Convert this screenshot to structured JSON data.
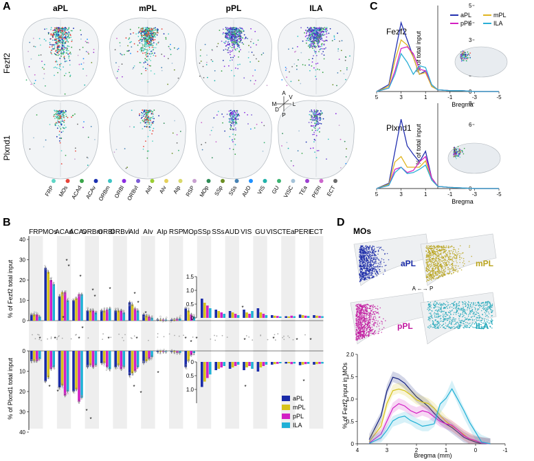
{
  "panels": {
    "a": "A",
    "b": "B",
    "c": "C",
    "d": "D"
  },
  "panelA": {
    "columns": [
      "aPL",
      "mPL",
      "pPL",
      "ILA"
    ],
    "rows": [
      "Fezf2",
      "Plxnd1"
    ],
    "compass": {
      "a": "A",
      "p": "P",
      "m": "M",
      "l": "L",
      "d": "D",
      "v": "V"
    },
    "regions": [
      "FRP",
      "MOs",
      "ACAd",
      "ACAv",
      "ORBm",
      "ORBl",
      "ORBvl",
      "AId",
      "AIv",
      "AIp",
      "RSP",
      "MOp",
      "SSp",
      "SSs",
      "AUD",
      "VIS",
      "GU",
      "VISC",
      "TEa",
      "PERI",
      "ECT"
    ],
    "colors": [
      "#5fd6c6",
      "#e8443a",
      "#3aa54a",
      "#1a2fb0",
      "#3cc4c4",
      "#8a2be2",
      "#7b5cd6",
      "#9acd32",
      "#e6d05a",
      "#d9d96b",
      "#c8a0d0",
      "#2e8b57",
      "#6b8e23",
      "#4682b4",
      "#1e90ff",
      "#20b2aa",
      "#3cb371",
      "#a4c2d8",
      "#9d3fd1",
      "#cc66cc",
      "#6a6a6a"
    ]
  },
  "panelB": {
    "ylabel_top": "% of Fezf2 total input",
    "ylabel_bottom": "% of Plxnd1 total input",
    "yticks": [
      "40",
      "30",
      "20",
      "10",
      "0",
      "10",
      "20",
      "30",
      "40"
    ],
    "inset_yticks_top": [
      "1.5",
      "1.0",
      "0.5",
      "0"
    ],
    "inset_yticks_bottom": [
      "0",
      "0.5",
      "1.0"
    ],
    "legend": [
      {
        "name": "aPL",
        "color": "#1a2ba8"
      },
      {
        "name": "mPL",
        "color": "#d6c21a"
      },
      {
        "name": "pPL",
        "color": "#d21fc4"
      },
      {
        "name": "ILA",
        "color": "#1fb0d6"
      }
    ]
  },
  "chart_data": [
    {
      "type": "bar",
      "title": "% of Fezf2 total input",
      "categories": [
        "FRP",
        "MOs",
        "ACAd",
        "ACAv",
        "ORBm",
        "ORBl",
        "ORBvl",
        "AId",
        "AIv",
        "AIp",
        "RSP",
        "MOp"
      ],
      "series": [
        {
          "name": "aPL",
          "values": [
            3,
            26,
            12,
            10,
            5,
            5,
            5,
            9,
            3,
            0.5,
            0.5,
            6
          ]
        },
        {
          "name": "mPL",
          "values": [
            3,
            24,
            14,
            11,
            5,
            5,
            5,
            8,
            2.5,
            0.5,
            0.5,
            5
          ]
        },
        {
          "name": "pPL",
          "values": [
            3,
            20,
            14,
            13,
            5,
            5.5,
            5,
            6,
            2,
            0.5,
            1,
            3
          ]
        },
        {
          "name": "ILA",
          "values": [
            2,
            18,
            10,
            13,
            4,
            6,
            4,
            5,
            1.5,
            0.5,
            1,
            2
          ]
        }
      ],
      "ylim": [
        0,
        40
      ]
    },
    {
      "type": "bar",
      "title": "% of Plxnd1 total input",
      "categories": [
        "FRP",
        "MOs",
        "ACAd",
        "ACAv",
        "ORBm",
        "ORBl",
        "ORBvl",
        "AId",
        "AIv",
        "AIp",
        "RSP",
        "MOp"
      ],
      "series": [
        {
          "name": "aPL",
          "values": [
            5,
            15,
            18,
            20,
            8,
            6,
            8,
            12,
            6,
            0.5,
            0.5,
            8
          ]
        },
        {
          "name": "mPL",
          "values": [
            5,
            13,
            17,
            19,
            7,
            6,
            7,
            11,
            5,
            0.5,
            0.5,
            5
          ]
        },
        {
          "name": "pPL",
          "values": [
            5,
            9,
            22,
            25,
            8,
            8,
            9,
            10,
            4,
            0.5,
            1,
            2
          ]
        },
        {
          "name": "ILA",
          "values": [
            4,
            8,
            20,
            23,
            7,
            9,
            8,
            8,
            3,
            0.5,
            1,
            1
          ]
        }
      ],
      "ylim": [
        0,
        40
      ]
    },
    {
      "type": "line",
      "title": "Fezf2",
      "xlabel": "Bregma",
      "ylabel": "% of total input",
      "x": [
        5,
        4,
        3.5,
        3,
        2.5,
        2,
        1.5,
        1,
        0.5,
        0,
        -1,
        -2,
        -3,
        -5
      ],
      "series": [
        {
          "name": "aPL",
          "values": [
            0,
            0.4,
            2.2,
            4.0,
            3.0,
            2.0,
            1.0,
            1.2,
            0.3,
            0.1,
            0.05,
            0.05,
            0,
            0
          ]
        },
        {
          "name": "mPL",
          "values": [
            0,
            0.3,
            1.8,
            3.0,
            2.7,
            2.0,
            1.0,
            1.1,
            0.3,
            0.1,
            0.05,
            0.05,
            0,
            0
          ]
        },
        {
          "name": "pPL",
          "values": [
            0,
            0.2,
            1.2,
            2.5,
            2.6,
            2.2,
            1.3,
            1.2,
            0.4,
            0.1,
            0.05,
            0.05,
            0,
            0
          ]
        },
        {
          "name": "ILA",
          "values": [
            0,
            0.2,
            1.0,
            2.2,
            1.7,
            1.0,
            1.5,
            1.4,
            0.4,
            0.1,
            0.05,
            0.05,
            0,
            0
          ]
        }
      ],
      "ylim": [
        0,
        5
      ],
      "xlim": [
        5,
        -5
      ]
    },
    {
      "type": "line",
      "title": "Plxnd1",
      "xlabel": "Bregma",
      "ylabel": "% of total input",
      "x": [
        5,
        4,
        3.5,
        3,
        2.5,
        2,
        1.5,
        1,
        0.5,
        0,
        -1,
        -2,
        -3,
        -5
      ],
      "series": [
        {
          "name": "aPL",
          "values": [
            0,
            0.5,
            3.5,
            6.5,
            4.0,
            3.2,
            2.5,
            3.5,
            1.0,
            0.2,
            0.1,
            0.05,
            0,
            0
          ]
        },
        {
          "name": "mPL",
          "values": [
            0,
            0.4,
            2.5,
            3.0,
            2.0,
            2.0,
            2.0,
            2.6,
            0.8,
            0.2,
            0.1,
            0.05,
            0,
            0
          ]
        },
        {
          "name": "pPL",
          "values": [
            0,
            0.3,
            1.8,
            2.0,
            1.5,
            1.7,
            2.5,
            3.0,
            1.0,
            0.2,
            0.1,
            0.05,
            0,
            0
          ]
        },
        {
          "name": "ILA",
          "values": [
            0,
            0.3,
            1.5,
            2.0,
            1.4,
            1.5,
            1.8,
            2.2,
            0.8,
            0.2,
            0.1,
            0.05,
            0,
            0
          ]
        }
      ],
      "ylim": [
        0,
        8
      ],
      "xlim": [
        5,
        -5
      ]
    },
    {
      "type": "line",
      "title": "% of Fezf2 input in MOs",
      "xlabel": "Bregma (mm)",
      "ylabel": "% of Fezf2 input in MOs",
      "x": [
        3.6,
        3.2,
        3.0,
        2.8,
        2.6,
        2.4,
        2.2,
        2.0,
        1.8,
        1.6,
        1.4,
        1.2,
        1.0,
        0.8,
        0.6,
        0.4,
        0.2,
        0.0,
        -0.2,
        -0.5
      ],
      "series": [
        {
          "name": "aPL",
          "values": [
            0.1,
            0.6,
            1.2,
            1.5,
            1.45,
            1.35,
            1.2,
            1.05,
            0.95,
            0.85,
            0.7,
            0.55,
            0.45,
            0.35,
            0.25,
            0.15,
            0.08,
            0.04,
            0.02,
            0
          ]
        },
        {
          "name": "mPL",
          "values": [
            0.05,
            0.4,
            0.9,
            1.2,
            1.25,
            1.2,
            1.1,
            1.0,
            0.95,
            0.9,
            0.8,
            0.65,
            0.5,
            0.4,
            0.3,
            0.2,
            0.12,
            0.06,
            0.03,
            0
          ]
        },
        {
          "name": "pPL",
          "values": [
            0.02,
            0.2,
            0.5,
            0.8,
            0.9,
            0.85,
            0.75,
            0.7,
            0.75,
            0.7,
            0.6,
            0.5,
            0.45,
            0.4,
            0.3,
            0.2,
            0.12,
            0.06,
            0.03,
            0
          ]
        },
        {
          "name": "ILA",
          "values": [
            0.02,
            0.15,
            0.3,
            0.5,
            0.55,
            0.6,
            0.55,
            0.45,
            0.4,
            0.4,
            0.5,
            0.8,
            1.0,
            1.3,
            1.0,
            0.7,
            0.45,
            0.2,
            0.08,
            0
          ]
        }
      ],
      "ylim": [
        0,
        2.0
      ],
      "xlim": [
        4,
        -1
      ],
      "xticks": [
        "4",
        "3",
        "2",
        "1",
        "0",
        "-1"
      ],
      "yticks": [
        "0",
        "0.5",
        "1.0",
        "1.5",
        "2.0"
      ]
    }
  ],
  "panelC": {
    "row1": "Fezf2",
    "row2": "Plxnd1",
    "ylabel": "% of total input",
    "xlabel": "Bregma",
    "xticks": [
      "5",
      "3",
      "1",
      "-1",
      "-3",
      "-5"
    ],
    "yticks1": [
      "0",
      "1",
      "2",
      "3",
      "4",
      "5"
    ],
    "yticks2": [
      "0",
      "2",
      "4",
      "6",
      "8"
    ],
    "legend": [
      {
        "name": "aPL",
        "color": "#2230b0"
      },
      {
        "name": "mPL",
        "color": "#e0b520"
      },
      {
        "name": "pPL",
        "color": "#d41fc2"
      },
      {
        "name": "ILA",
        "color": "#29aed6"
      }
    ]
  },
  "panelD": {
    "title": "MOs",
    "labels": [
      {
        "name": "aPL",
        "color": "#1a2ba8"
      },
      {
        "name": "mPL",
        "color": "#b8a21a"
      },
      {
        "name": "pPL",
        "color": "#c0189f"
      },
      {
        "name": "ILA",
        "color": "#1ba5b8"
      }
    ],
    "compass": "A ←→ P",
    "ylabel": "% of Fezf2 input in MOs",
    "xlabel": "Bregma (mm)"
  }
}
